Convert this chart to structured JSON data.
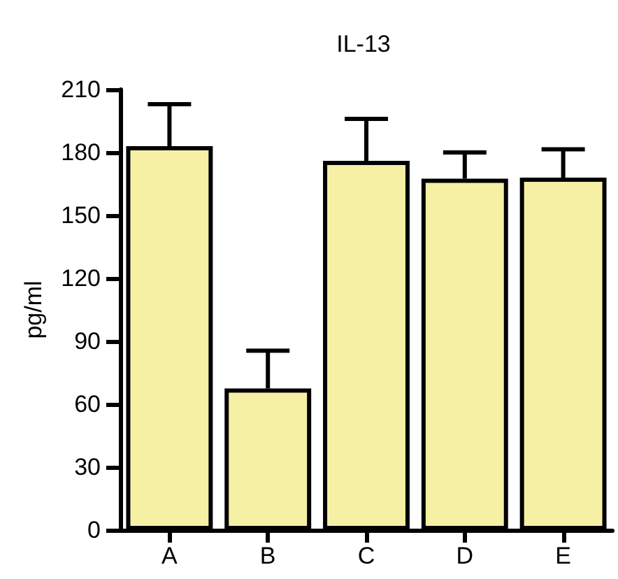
{
  "chart_data": {
    "type": "bar",
    "title": "IL-13",
    "ylabel": "pg/ml",
    "categories": [
      "A",
      "B",
      "C",
      "D",
      "E"
    ],
    "values": [
      183,
      67.5,
      176,
      167.5,
      168
    ],
    "errors": [
      [
        183,
        203
      ],
      [
        67.5,
        85.5
      ],
      [
        176,
        196
      ],
      [
        167.5,
        180
      ],
      [
        168,
        181.5
      ]
    ],
    "color": "#f5f0a3",
    "ylim": [
      0,
      210
    ],
    "yticks": [
      0,
      30,
      60,
      90,
      120,
      150,
      180,
      210
    ],
    "grid": false
  }
}
